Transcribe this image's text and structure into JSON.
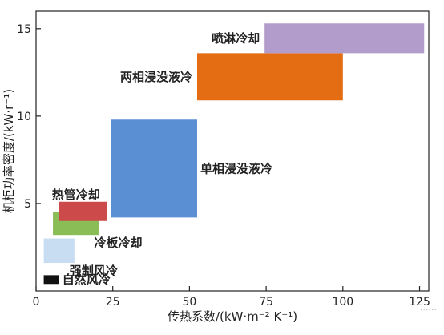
{
  "chart_data": {
    "type": "range-rectangles",
    "xlabel": "传热系数/(kW·m⁻² K⁻¹)",
    "ylabel": "机柜功率密度/(kW·r⁻¹)",
    "xlim": [
      0,
      128
    ],
    "ylim": [
      0,
      16
    ],
    "xticks": [
      {
        "value": 0,
        "label": "0"
      },
      {
        "value": 25,
        "label": "25"
      },
      {
        "value": 50,
        "label": "50"
      },
      {
        "value": 75,
        "label": "75"
      },
      {
        "value": 100,
        "label": "100"
      },
      {
        "value": 125,
        "label": "125"
      }
    ],
    "yticks": [
      {
        "value": 5,
        "label": "5"
      },
      {
        "value": 10,
        "label": "10"
      },
      {
        "value": 15,
        "label": "15"
      }
    ],
    "regions": [
      {
        "name": "自然风冷",
        "x": [
          2.5,
          7.5
        ],
        "y": [
          0.4,
          0.9
        ],
        "color": "#111111",
        "label_anchor": "right"
      },
      {
        "name": "强制风冷",
        "x": [
          2.5,
          12.5
        ],
        "y": [
          1.6,
          3.0
        ],
        "color": "#c9ddf2",
        "label_anchor": "right-bottom"
      },
      {
        "name": "冷板冷却",
        "x": [
          5.5,
          20.5
        ],
        "y": [
          3.2,
          4.5
        ],
        "color": "#8bbd57",
        "label_anchor": "right-bottom"
      },
      {
        "name": "热管冷却",
        "x": [
          7.5,
          23.0
        ],
        "y": [
          4.0,
          5.1
        ],
        "color": "#cc4a4a",
        "label_anchor": "left-top"
      },
      {
        "name": "单相浸没液冷",
        "x": [
          24.5,
          52.5
        ],
        "y": [
          4.2,
          9.8
        ],
        "color": "#5b8fd4",
        "label_anchor": "right"
      },
      {
        "name": "两相浸没液冷",
        "x": [
          52.5,
          100.0
        ],
        "y": [
          10.9,
          13.6
        ],
        "color": "#e46c12",
        "label_anchor": "left"
      },
      {
        "name": "喷淋冷却",
        "x": [
          74.5,
          126.5
        ],
        "y": [
          13.6,
          15.3
        ],
        "color": "#b19ccb",
        "label_anchor": "left"
      }
    ]
  },
  "watermark": "······"
}
